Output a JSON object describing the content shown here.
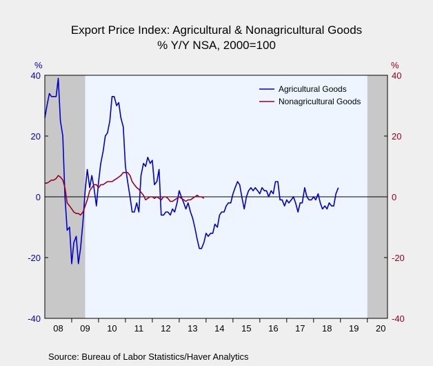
{
  "chart_data": {
    "type": "line",
    "title": "Export Price Index: Agricultural & Nonagricultural Goods",
    "subtitle": "% Y/Y   NSA, 2000=100",
    "ylabel_left": "%",
    "ylabel_right": "%",
    "ylim": [
      -40,
      40
    ],
    "y_ticks": [
      40,
      20,
      0,
      -20,
      -40
    ],
    "x_tick_labels": [
      "08",
      "09",
      "10",
      "11",
      "12",
      "13",
      "14",
      "15",
      "16",
      "17",
      "18",
      "19",
      "20"
    ],
    "x_start": 2008.0,
    "x_end": 2020.75,
    "recessions": [
      [
        2008.0,
        2009.5
      ],
      [
        2020.0,
        2020.75
      ]
    ],
    "legend_position": "top-right",
    "grid": false,
    "colors": {
      "plot_bg": "#eef5ff",
      "recession": "#c8c8c8",
      "agri": "#0000cc",
      "nonagri": "#990022"
    },
    "series": [
      {
        "name": "Agricultural Goods",
        "color": "#0000cc",
        "points": [
          [
            2008.0,
            26
          ],
          [
            2008.08,
            30
          ],
          [
            2008.17,
            34
          ],
          [
            2008.25,
            33
          ],
          [
            2008.33,
            33
          ],
          [
            2008.42,
            33
          ],
          [
            2008.5,
            39
          ],
          [
            2008.58,
            25
          ],
          [
            2008.67,
            20
          ],
          [
            2008.75,
            0
          ],
          [
            2008.83,
            -11
          ],
          [
            2008.92,
            -10
          ],
          [
            2009.0,
            -22
          ],
          [
            2009.08,
            -15
          ],
          [
            2009.17,
            -13
          ],
          [
            2009.25,
            -22
          ],
          [
            2009.33,
            -17
          ],
          [
            2009.42,
            -8
          ],
          [
            2009.5,
            2
          ],
          [
            2009.58,
            9
          ],
          [
            2009.67,
            3
          ],
          [
            2009.75,
            7
          ],
          [
            2009.83,
            3
          ],
          [
            2009.92,
            -3
          ],
          [
            2010.0,
            5
          ],
          [
            2010.08,
            11
          ],
          [
            2010.17,
            15
          ],
          [
            2010.25,
            20
          ],
          [
            2010.33,
            21
          ],
          [
            2010.42,
            25
          ],
          [
            2010.5,
            33
          ],
          [
            2010.58,
            33
          ],
          [
            2010.67,
            30
          ],
          [
            2010.75,
            31
          ],
          [
            2010.83,
            26
          ],
          [
            2010.92,
            23
          ],
          [
            2011.0,
            10
          ],
          [
            2011.08,
            5
          ],
          [
            2011.17,
            0
          ],
          [
            2011.25,
            -5
          ],
          [
            2011.33,
            -5
          ],
          [
            2011.42,
            -2
          ],
          [
            2011.5,
            -5
          ],
          [
            2011.58,
            7
          ],
          [
            2011.67,
            11
          ],
          [
            2011.75,
            10
          ],
          [
            2011.83,
            13
          ],
          [
            2011.92,
            11
          ],
          [
            2012.0,
            12
          ],
          [
            2012.08,
            4
          ],
          [
            2012.17,
            5
          ],
          [
            2012.25,
            9
          ],
          [
            2012.33,
            -6
          ],
          [
            2012.42,
            -6
          ],
          [
            2012.5,
            -5
          ],
          [
            2012.58,
            -5
          ],
          [
            2012.67,
            -6
          ],
          [
            2012.75,
            -4
          ],
          [
            2012.83,
            -5
          ],
          [
            2012.92,
            -2
          ],
          [
            2013.0,
            2
          ],
          [
            2013.08,
            0
          ],
          [
            2013.17,
            -2
          ],
          [
            2013.25,
            -4
          ],
          [
            2013.33,
            -2
          ],
          [
            2013.42,
            -5
          ],
          [
            2013.5,
            -7
          ],
          [
            2013.58,
            -10
          ],
          [
            2013.67,
            -14
          ],
          [
            2013.75,
            -17
          ],
          [
            2013.83,
            -17
          ],
          [
            2013.92,
            -15
          ],
          [
            2014.0,
            -12
          ],
          [
            2014.08,
            -13
          ],
          [
            2014.17,
            -12
          ],
          [
            2014.25,
            -12
          ],
          [
            2014.33,
            -9
          ],
          [
            2014.42,
            -10
          ],
          [
            2014.5,
            -6
          ],
          [
            2014.58,
            -5
          ],
          [
            2014.67,
            -5
          ],
          [
            2014.75,
            -3
          ],
          [
            2014.83,
            -2
          ],
          [
            2014.92,
            -2
          ],
          [
            2015.0,
            1
          ],
          [
            2015.08,
            3
          ],
          [
            2015.17,
            5
          ],
          [
            2015.25,
            4
          ],
          [
            2015.33,
            0
          ],
          [
            2015.42,
            -4
          ],
          [
            2015.5,
            0
          ],
          [
            2015.58,
            2
          ],
          [
            2015.67,
            3
          ],
          [
            2015.75,
            2
          ],
          [
            2015.83,
            3
          ],
          [
            2015.92,
            2
          ],
          [
            2016.0,
            1
          ],
          [
            2016.08,
            3
          ],
          [
            2016.17,
            2
          ],
          [
            2016.25,
            2
          ],
          [
            2016.33,
            0
          ],
          [
            2016.42,
            2
          ],
          [
            2016.5,
            1
          ],
          [
            2016.58,
            5
          ],
          [
            2016.67,
            5
          ],
          [
            2016.75,
            -1
          ],
          [
            2016.83,
            -1
          ],
          [
            2016.92,
            -3
          ],
          [
            2017.0,
            -1
          ],
          [
            2017.08,
            -2
          ],
          [
            2017.17,
            -1
          ],
          [
            2017.25,
            0
          ],
          [
            2017.33,
            -2
          ],
          [
            2017.42,
            -5
          ],
          [
            2017.5,
            -2
          ],
          [
            2017.58,
            -2
          ],
          [
            2017.67,
            3
          ],
          [
            2017.75,
            0
          ],
          [
            2017.83,
            -1
          ],
          [
            2017.92,
            -1
          ],
          [
            2018.0,
            0
          ],
          [
            2018.08,
            -1
          ],
          [
            2018.17,
            1
          ],
          [
            2018.25,
            -2
          ],
          [
            2018.33,
            -4
          ],
          [
            2018.42,
            -3
          ],
          [
            2018.5,
            -4
          ],
          [
            2018.58,
            -2
          ],
          [
            2018.67,
            -3
          ],
          [
            2018.75,
            -3
          ],
          [
            2018.83,
            1
          ],
          [
            2018.92,
            3
          ]
        ],
        "x_offset_years": 4.0
      },
      {
        "name": "Nonagricultural Goods",
        "color": "#990022",
        "points": [
          [
            2008.0,
            4.5
          ],
          [
            2008.08,
            4.5
          ],
          [
            2008.17,
            5
          ],
          [
            2008.25,
            5.5
          ],
          [
            2008.33,
            5.5
          ],
          [
            2008.42,
            6
          ],
          [
            2008.5,
            7
          ],
          [
            2008.58,
            6.5
          ],
          [
            2008.67,
            5.5
          ],
          [
            2008.75,
            3
          ],
          [
            2008.83,
            -2
          ],
          [
            2008.92,
            -3
          ],
          [
            2009.0,
            -4
          ],
          [
            2009.08,
            -5
          ],
          [
            2009.17,
            -5.5
          ],
          [
            2009.25,
            -5.5
          ],
          [
            2009.33,
            -6
          ],
          [
            2009.42,
            -5
          ],
          [
            2009.5,
            -3
          ],
          [
            2009.58,
            -1
          ],
          [
            2009.67,
            2
          ],
          [
            2009.75,
            3
          ],
          [
            2009.83,
            4
          ],
          [
            2009.92,
            4
          ],
          [
            2010.0,
            3
          ],
          [
            2010.08,
            4
          ],
          [
            2010.17,
            4
          ],
          [
            2010.25,
            4.5
          ],
          [
            2010.33,
            5
          ],
          [
            2010.42,
            5
          ],
          [
            2010.5,
            5
          ],
          [
            2010.58,
            5.5
          ],
          [
            2010.67,
            6
          ],
          [
            2010.75,
            6.5
          ],
          [
            2010.83,
            7
          ],
          [
            2010.92,
            8
          ],
          [
            2011.0,
            8
          ],
          [
            2011.08,
            8
          ],
          [
            2011.17,
            7
          ],
          [
            2011.25,
            5
          ],
          [
            2011.33,
            4
          ],
          [
            2011.42,
            3
          ],
          [
            2011.5,
            2.5
          ],
          [
            2011.58,
            1.5
          ],
          [
            2011.67,
            0.5
          ],
          [
            2011.75,
            -1
          ],
          [
            2011.83,
            -0.5
          ],
          [
            2011.92,
            0
          ],
          [
            2012.0,
            0
          ],
          [
            2012.08,
            -0.5
          ],
          [
            2012.17,
            0
          ],
          [
            2012.25,
            -0.5
          ],
          [
            2012.33,
            -1
          ],
          [
            2012.42,
            0
          ],
          [
            2012.5,
            0
          ],
          [
            2012.58,
            -0.5
          ],
          [
            2012.67,
            -1.5
          ],
          [
            2012.75,
            -1.5
          ],
          [
            2012.83,
            -1
          ],
          [
            2012.92,
            -0.5
          ],
          [
            2013.0,
            0
          ],
          [
            2013.08,
            -0.5
          ],
          [
            2013.17,
            -1
          ],
          [
            2013.25,
            -1.5
          ],
          [
            2013.33,
            -1
          ],
          [
            2013.42,
            -1
          ],
          [
            2013.5,
            -0.5
          ],
          [
            2013.58,
            0
          ],
          [
            2013.67,
            0.5
          ],
          [
            2013.75,
            0
          ],
          [
            2013.83,
            0
          ],
          [
            2013.92,
            -0.5
          ]
        ]
      }
    ]
  },
  "legend": {
    "agri": "Agricultural Goods",
    "nonagri": "Nonagricultural Goods"
  },
  "source": "Source:  Bureau of Labor Statistics/Haver Analytics"
}
